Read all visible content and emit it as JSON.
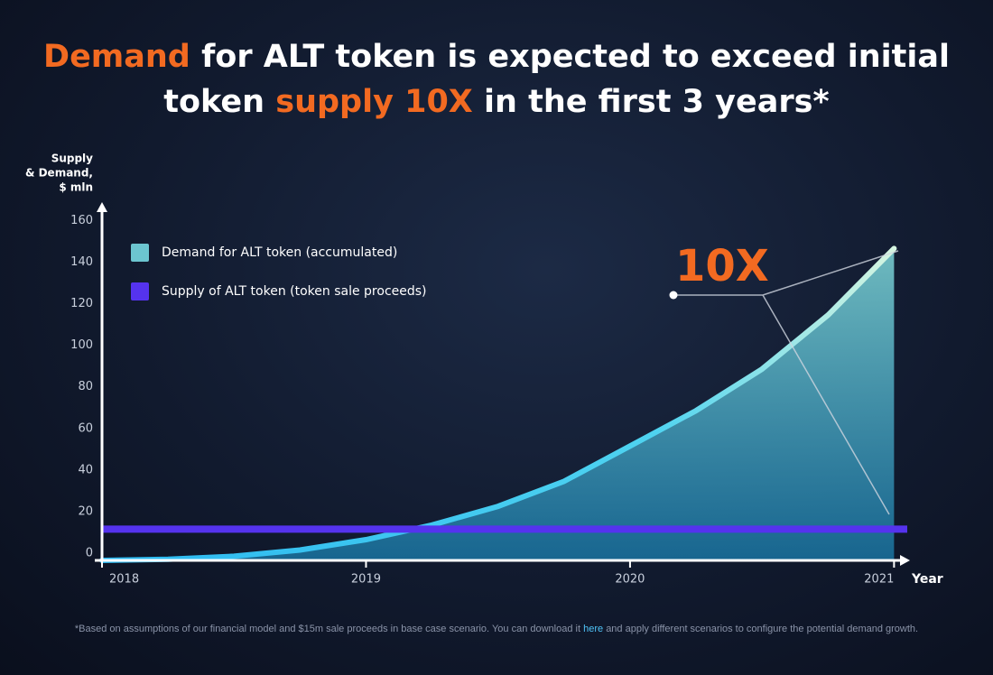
{
  "title_parts": [
    "Demand",
    "for ALT token is expected to exceed initial",
    "token",
    "supply 10X",
    "in the first 3 years*"
  ],
  "chart_data": {
    "type": "line",
    "y_label": [
      "Supply",
      "& Demand,",
      "$ mln"
    ],
    "x_label": "Year",
    "xlim": [
      2018,
      2021.05
    ],
    "xticks": [
      2018,
      2019,
      2020,
      2021
    ],
    "ylim": [
      0,
      171
    ],
    "yticks": [
      0,
      20,
      40,
      60,
      80,
      100,
      120,
      140,
      160
    ],
    "annotation": "10X",
    "series": [
      {
        "name": "Demand for ALT token (accumulated)",
        "color": "#4fd3f0",
        "fill": true,
        "x": [
          2018,
          2018.25,
          2018.5,
          2018.75,
          2019,
          2019.25,
          2019.5,
          2019.75,
          2020,
          2020.25,
          2020.5,
          2020.75,
          2021
        ],
        "values": [
          0,
          0.5,
          2,
          5,
          10,
          17,
          26,
          38,
          55,
          72,
          92,
          118,
          150
        ]
      },
      {
        "name": "Supply of ALT token (token sale proceeds)",
        "color": "#5533ee",
        "x": [
          2018,
          2021.05
        ],
        "values": [
          15,
          15
        ]
      }
    ]
  },
  "footnote": {
    "before": "*Based on assumptions of our financial model and $15m sale proceeds in base case scenario. You can download it",
    "link": "here",
    "after": "and apply different scenarios to configure the potential demand growth."
  }
}
